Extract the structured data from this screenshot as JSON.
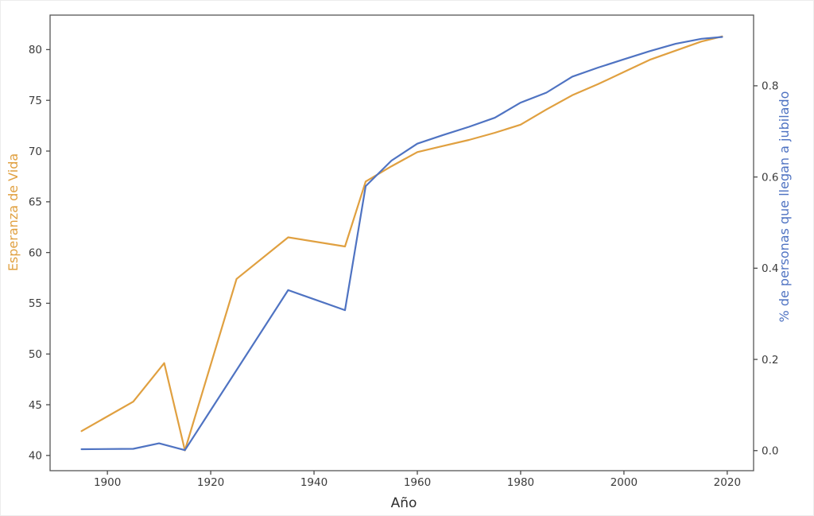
{
  "figure": {
    "background": "#ffffff",
    "spine_color": "#565656",
    "tick_color": "#4a4a4a",
    "tick_text_color": "#3b3b3b"
  },
  "chart_data": {
    "type": "line",
    "title": "",
    "xlabel": "Año",
    "x_range": [
      1888.9,
      2025.1
    ],
    "x_ticks": [
      "1900",
      "1920",
      "1940",
      "1960",
      "1980",
      "2000",
      "2020"
    ],
    "grid": false,
    "legend": "none",
    "left_axis": {
      "label": "Esperanza de Vida",
      "color": "#e0a040",
      "ticks": [
        "40",
        "45",
        "50",
        "55",
        "60",
        "65",
        "70",
        "75",
        "80"
      ],
      "range": [
        38.5,
        83.4
      ]
    },
    "right_axis": {
      "label": "% de personas que llegan a jubilado",
      "color": "#4f73c2",
      "ticks": [
        "0.0",
        "0.2",
        "0.4",
        "0.6",
        "0.8"
      ],
      "range": [
        -0.044,
        0.955
      ]
    },
    "series": [
      {
        "name": "Esperanza de Vida",
        "slug": "life-expectancy-line",
        "axis": "left",
        "color": "#e0a040",
        "x": [
          1895,
          1905,
          1911,
          1915,
          1925,
          1935,
          1946,
          1950,
          1955,
          1960,
          1965,
          1970,
          1975,
          1980,
          1985,
          1990,
          1995,
          2000,
          2005,
          2010,
          2015,
          2019
        ],
        "y": [
          42.4,
          45.3,
          49.1,
          40.5,
          57.4,
          61.5,
          60.6,
          67.0,
          68.5,
          69.9,
          70.5,
          71.1,
          71.8,
          72.6,
          74.1,
          75.5,
          76.6,
          77.8,
          79.0,
          79.9,
          80.8,
          81.3
        ]
      },
      {
        "name": "% de personas que llegan a jubilado",
        "slug": "retirement-share-line",
        "axis": "right",
        "color": "#4f73c2",
        "x": [
          1895,
          1905,
          1910,
          1915,
          1935,
          1946,
          1950,
          1955,
          1960,
          1965,
          1970,
          1975,
          1980,
          1985,
          1990,
          1995,
          2000,
          2005,
          2010,
          2015,
          2019
        ],
        "y": [
          0.003,
          0.004,
          0.016,
          0.001,
          0.352,
          0.308,
          0.58,
          0.636,
          0.673,
          0.692,
          0.71,
          0.73,
          0.763,
          0.785,
          0.82,
          0.84,
          0.858,
          0.876,
          0.892,
          0.903,
          0.907
        ]
      }
    ]
  }
}
